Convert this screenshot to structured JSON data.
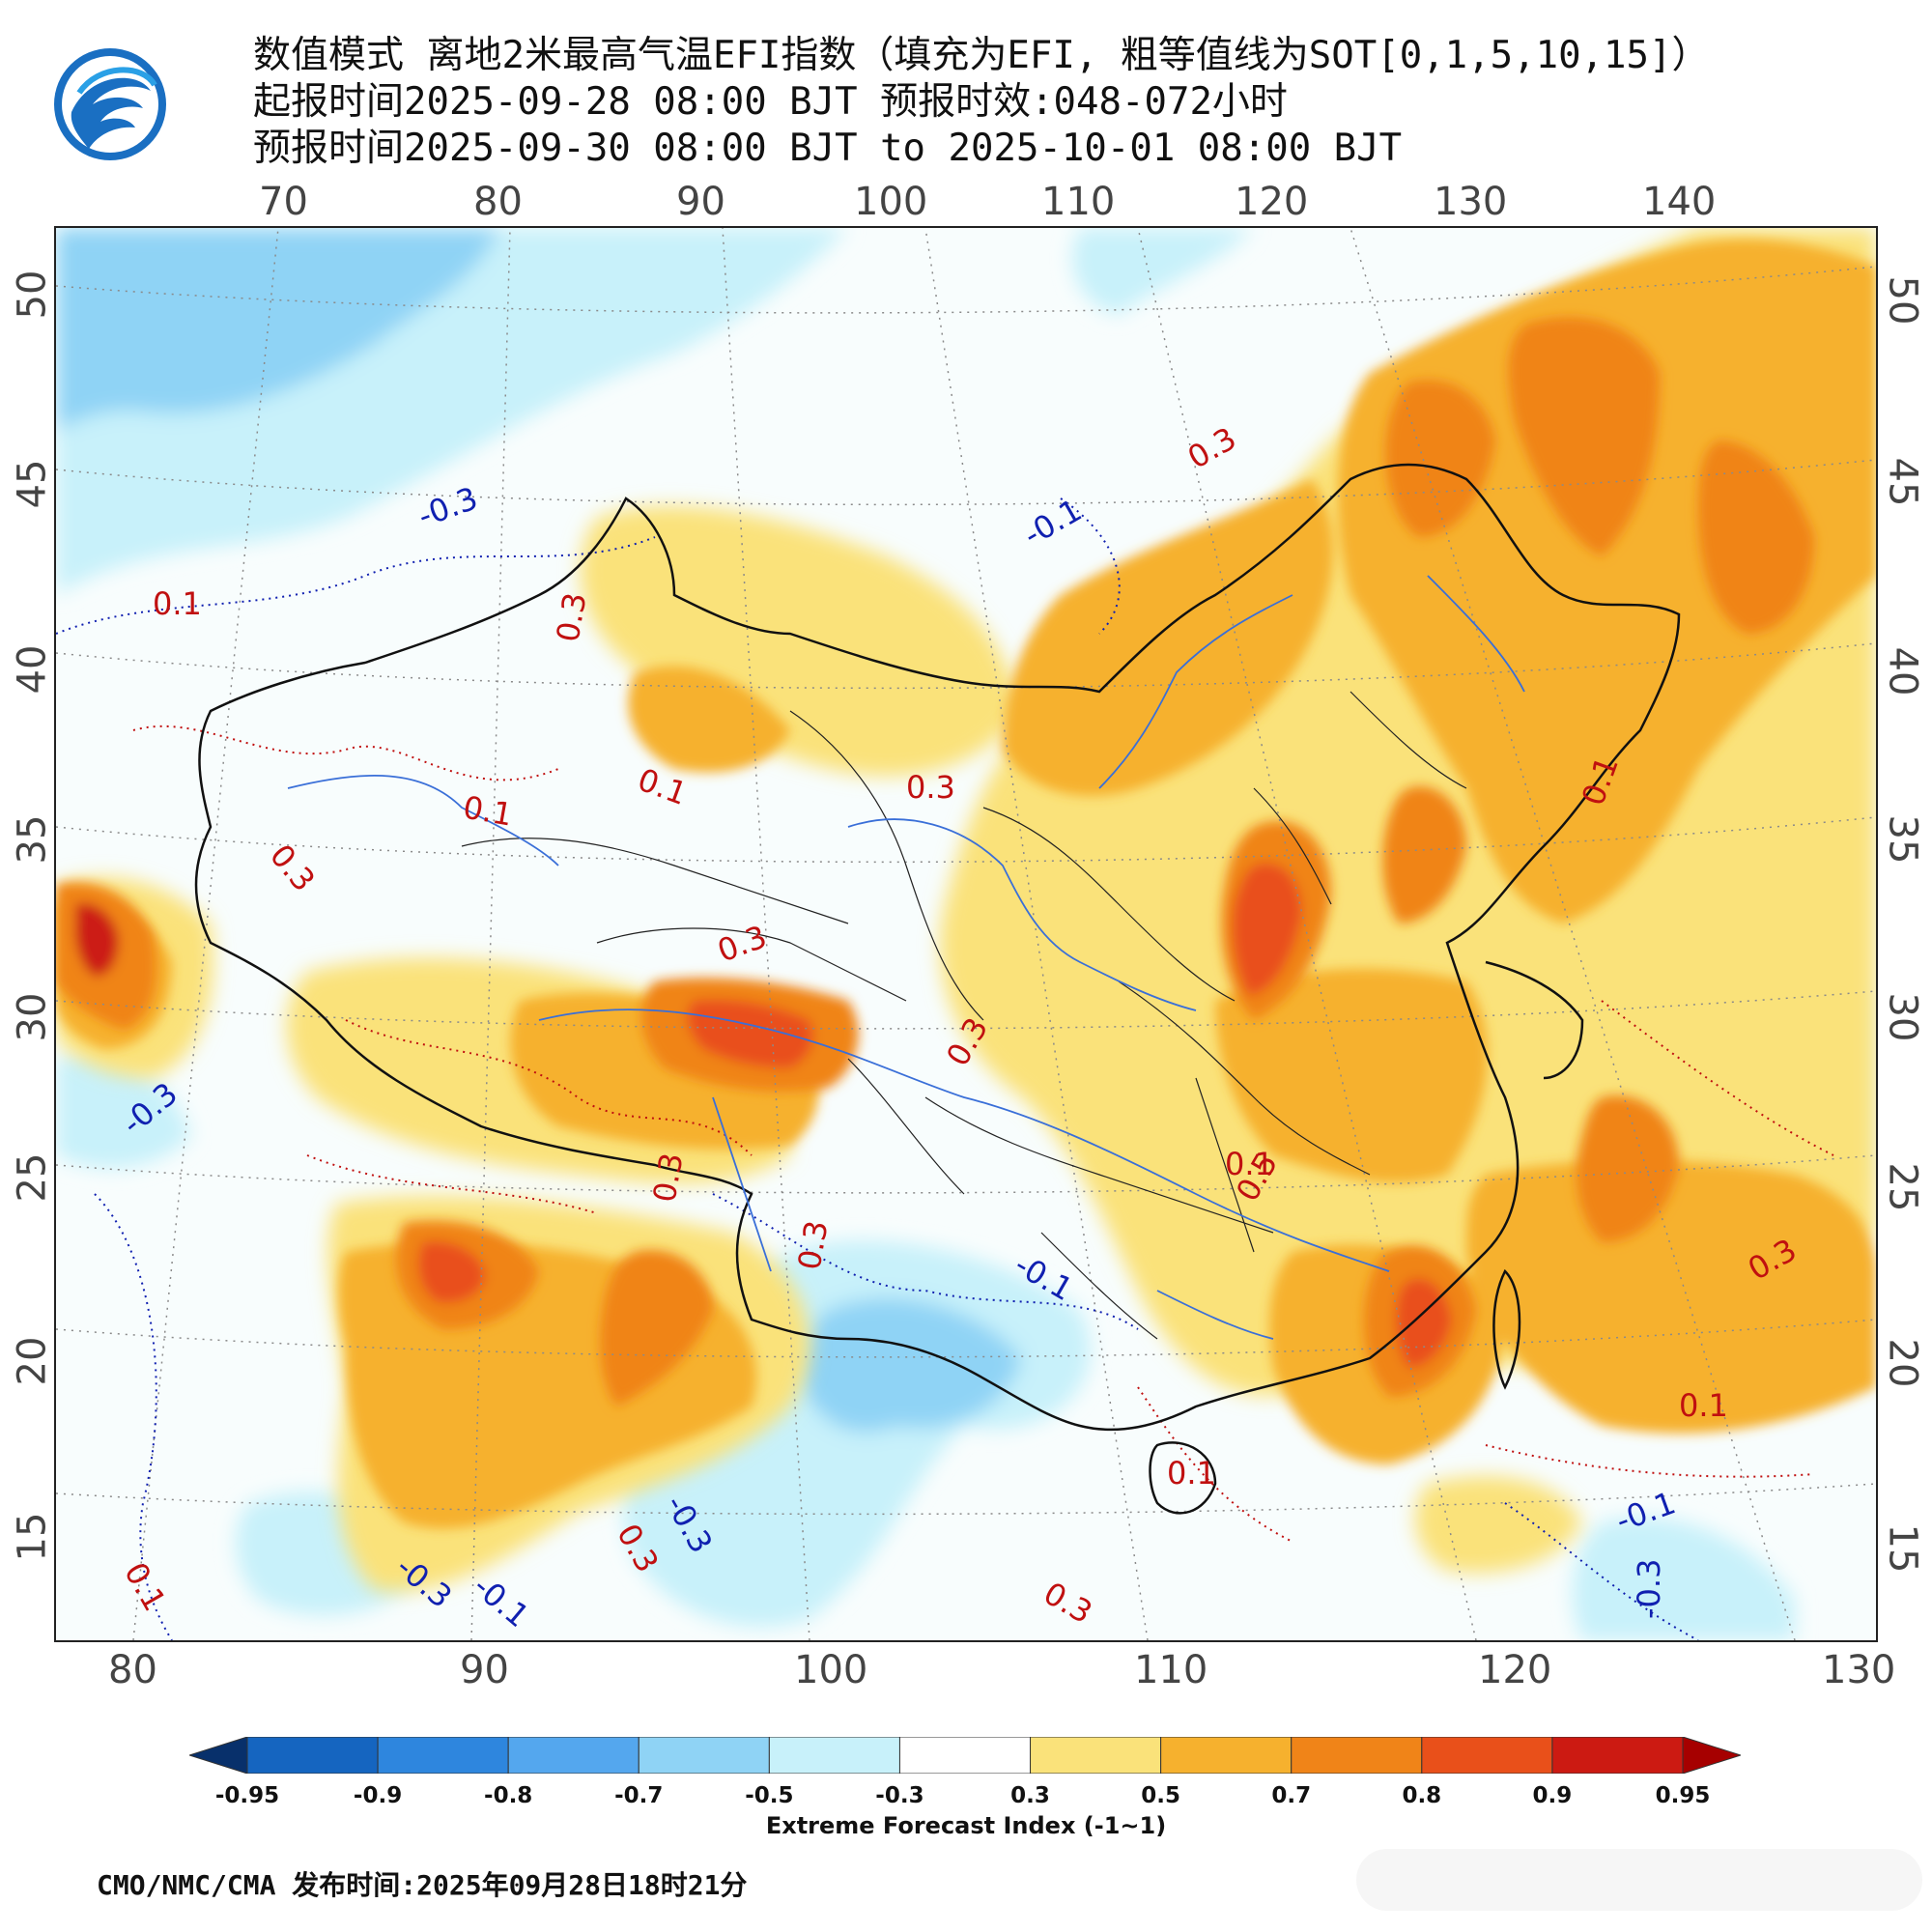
{
  "header": {
    "title_line1": "数值模式 离地2米最高气温EFI指数（填充为EFI, 粗等值线为SOT[0,1,5,10,15]）",
    "title_line2": "起报时间2025-09-28 08:00 BJT 预报时效:048-072小时",
    "title_line3": "预报时间2025-09-30 08:00 BJT to 2025-10-01 08:00 BJT"
  },
  "map": {
    "top_lon_ticks": [
      "70",
      "80",
      "90",
      "100",
      "110",
      "120",
      "130",
      "140"
    ],
    "bottom_lon_ticks": [
      "80",
      "90",
      "100",
      "110",
      "120",
      "130"
    ],
    "left_lat_ticks": [
      "50",
      "45",
      "40",
      "35",
      "30",
      "25",
      "20",
      "15"
    ],
    "right_lat_ticks": [
      "50",
      "45",
      "40",
      "35",
      "30",
      "25",
      "20",
      "15"
    ],
    "contour_labels": [
      {
        "text": "0.3",
        "color": "#c01010"
      },
      {
        "text": "-0.3",
        "color": "#1020b0"
      },
      {
        "text": "0.1",
        "color": "#c01010"
      },
      {
        "text": "-0.1",
        "color": "#1020b0"
      },
      {
        "text": "0.3",
        "color": "#c01010"
      },
      {
        "text": "0.1",
        "color": "#c01010"
      },
      {
        "text": "0.3",
        "color": "#c01010"
      },
      {
        "text": "0.1",
        "color": "#c01010"
      },
      {
        "text": "0.3",
        "color": "#c01010"
      },
      {
        "text": "0.3",
        "color": "#c01010"
      },
      {
        "text": "0.3",
        "color": "#c01010"
      },
      {
        "text": "0.1",
        "color": "#c01010"
      },
      {
        "text": "-0.3",
        "color": "#1020b0"
      },
      {
        "text": "0.3",
        "color": "#c01010"
      },
      {
        "text": "0.3",
        "color": "#c01010"
      },
      {
        "text": "0.5",
        "color": "#c01010"
      },
      {
        "text": "0.1",
        "color": "#c01010"
      },
      {
        "text": "-0.1",
        "color": "#1020b0"
      },
      {
        "text": "0.3",
        "color": "#c01010"
      },
      {
        "text": "0.1",
        "color": "#c01010"
      },
      {
        "text": "-0.3",
        "color": "#1020b0"
      },
      {
        "text": "-0.3",
        "color": "#1020b0"
      },
      {
        "text": "-0.1",
        "color": "#1020b0"
      },
      {
        "text": "0.1",
        "color": "#c01010"
      },
      {
        "text": "0.3",
        "color": "#c01010"
      },
      {
        "text": "0.1",
        "color": "#c01010"
      },
      {
        "text": "-0.1",
        "color": "#1020b0"
      },
      {
        "text": "-0.3",
        "color": "#1020b0"
      },
      {
        "text": "0.3",
        "color": "#c01010"
      }
    ]
  },
  "colorbar": {
    "labels": [
      "-0.95",
      "-0.9",
      "-0.8",
      "-0.7",
      "-0.5",
      "-0.3",
      "0.3",
      "0.5",
      "0.7",
      "0.8",
      "0.9",
      "0.95"
    ],
    "colors": [
      "#08306b",
      "#1565c0",
      "#2e86de",
      "#54a7ee",
      "#8fd3f5",
      "#c8f1fa",
      "#ffffff",
      "#fae27a",
      "#f6b12e",
      "#f08418",
      "#e9501a",
      "#cc1a12",
      "#a60000"
    ],
    "title": "Extreme Forecast Index (-1~1)"
  },
  "footer": {
    "text": "CMO/NMC/CMA 发布时间:2025年09月28日18时21分"
  }
}
